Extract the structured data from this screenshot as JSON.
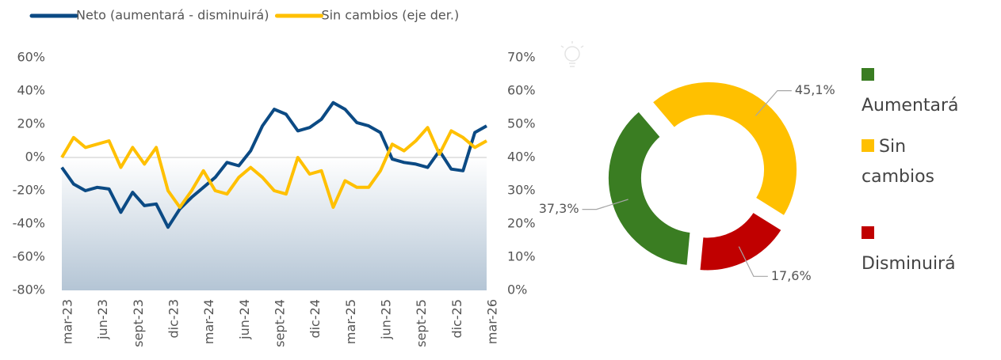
{
  "chart_data": [
    {
      "type": "line",
      "categories": [
        "mar-23",
        null,
        null,
        "jun-23",
        null,
        null,
        "sept-23",
        null,
        null,
        "dic-23",
        null,
        null,
        "mar-24",
        null,
        null,
        "jun-24",
        null,
        null,
        "sept-24",
        null,
        null,
        "dic-24",
        null,
        null,
        "mar-25",
        null,
        null,
        "jun-25",
        null,
        null,
        "sept-25",
        null,
        null,
        "dic-25",
        null,
        null,
        "mar-26"
      ],
      "series": [
        {
          "name": "Neto (aumentará - disminuirá)",
          "color": "#0b4a84",
          "axis": "y",
          "values": [
            -6,
            -16,
            -20,
            -18,
            -19,
            -33,
            -21,
            -29,
            -28,
            -42,
            -31,
            -24,
            -18,
            -12,
            -3,
            -5,
            4,
            19,
            29,
            26,
            16,
            18,
            23,
            33,
            29,
            21,
            19,
            15,
            -1,
            -3,
            -4,
            -6,
            4,
            -7,
            -8,
            15,
            19
          ]
        },
        {
          "name": "Sin cambios (eje der.)",
          "color": "#ffc000",
          "axis": "y2",
          "values": [
            40,
            46,
            43,
            44,
            45,
            37,
            43,
            38,
            43,
            30,
            25,
            30,
            36,
            30,
            29,
            34,
            37,
            34,
            30,
            29,
            40,
            35,
            36,
            25,
            33,
            31,
            31,
            36,
            44,
            42,
            45,
            49,
            41,
            48,
            46,
            43,
            45
          ]
        }
      ],
      "ylim": [
        -80,
        60
      ],
      "yticks": [
        {
          "value": -80,
          "label": "-80%"
        },
        {
          "value": -60,
          "label": "-60%"
        },
        {
          "value": -40,
          "label": "-40%"
        },
        {
          "value": -20,
          "label": "-20%"
        },
        {
          "value": 0,
          "label": "0%"
        },
        {
          "value": 20,
          "label": "20%"
        },
        {
          "value": 40,
          "label": "40%"
        },
        {
          "value": 60,
          "label": "60%"
        }
      ],
      "y2lim": [
        0,
        70
      ],
      "y2ticks": [
        {
          "value": 0,
          "label": "0%"
        },
        {
          "value": 10,
          "label": "10%"
        },
        {
          "value": 20,
          "label": "20%"
        },
        {
          "value": 30,
          "label": "30%"
        },
        {
          "value": 40,
          "label": "40%"
        },
        {
          "value": 50,
          "label": "50%"
        },
        {
          "value": 60,
          "label": "60%"
        },
        {
          "value": 70,
          "label": "70%"
        }
      ],
      "legend": "top"
    },
    {
      "type": "pie",
      "categories": [
        "Aumentará",
        "Sin cambios",
        "Disminuirá"
      ],
      "values": [
        37.3,
        45.1,
        17.6
      ],
      "value_labels": [
        "37,3%",
        "45,1%",
        "17,6%"
      ],
      "colors": [
        "#3a7d22",
        "#ffc000",
        "#c00000"
      ],
      "donut": true,
      "legend": "right"
    }
  ]
}
